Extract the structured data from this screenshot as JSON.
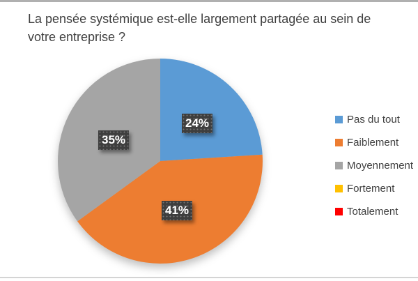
{
  "chart_data": {
    "type": "pie",
    "title": "La pensée systémique est-elle largement partagée au sein de votre entreprise ?",
    "categories": [
      "Pas du tout",
      "Faiblement",
      "Moyennement",
      "Fortement",
      "Totalement"
    ],
    "values": [
      24,
      41,
      35,
      0,
      0
    ],
    "data_labels": [
      "24%",
      "41%",
      "35%",
      "",
      ""
    ],
    "colors": [
      "#5B9BD5",
      "#ED7D31",
      "#A5A5A5",
      "#FFC000",
      "#FF0000"
    ],
    "legend_position": "right",
    "start_angle_deg": 0,
    "direction": "clockwise",
    "label_text_color": "#FFFFFF",
    "label_box_color": "#3E3E3E",
    "title_color": "#3F3F3F"
  }
}
